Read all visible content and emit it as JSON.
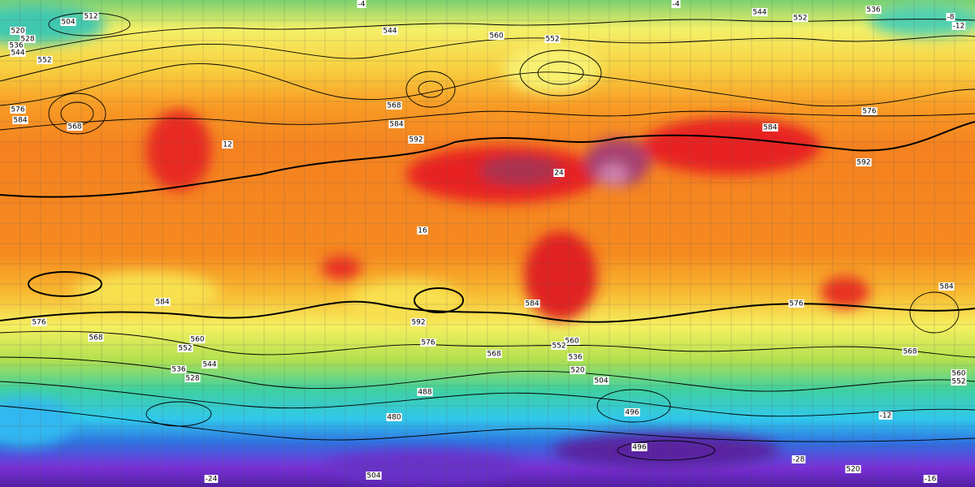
{
  "labels": [
    "512",
    "504",
    "520",
    "528",
    "536",
    "544",
    "552",
    "568",
    "584",
    "576",
    "544",
    "560",
    "552",
    "544",
    "552",
    "536",
    "568",
    "584",
    "592",
    "592",
    "576",
    "584",
    "584",
    "576",
    "568",
    "560",
    "552",
    "544",
    "536",
    "528",
    "592",
    "584",
    "576",
    "568",
    "560",
    "552",
    "536",
    "520",
    "504",
    "496",
    "488",
    "480",
    "496",
    "504",
    "520",
    "568",
    "576",
    "584",
    "560",
    "552",
    "-4",
    "-4",
    "-8",
    "-12",
    "16",
    "24",
    "12",
    "-12",
    "-24",
    "-16",
    "-28"
  ]
}
